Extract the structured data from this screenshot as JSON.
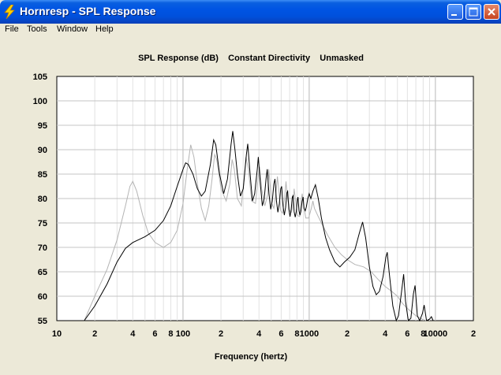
{
  "window": {
    "title": "Hornresp - SPL Response"
  },
  "menu": {
    "items": [
      "File",
      "Tools",
      "Window",
      "Help"
    ]
  },
  "chart_data": {
    "type": "line",
    "title": "SPL Response (dB)    Constant Directivity    Unmasked",
    "xlabel": "Frequency (hertz)",
    "ylabel": "",
    "x_scale": "log",
    "xlim": [
      10,
      20000
    ],
    "ylim": [
      55,
      105
    ],
    "y_ticks": [
      55,
      60,
      65,
      70,
      75,
      80,
      85,
      90,
      95,
      100,
      105
    ],
    "x_ticks": [
      {
        "value": 10,
        "label": "10"
      },
      {
        "value": 20,
        "label": "2"
      },
      {
        "value": 40,
        "label": "4"
      },
      {
        "value": 60,
        "label": "6"
      },
      {
        "value": 80,
        "label": "8"
      },
      {
        "value": 100,
        "label": "100"
      },
      {
        "value": 200,
        "label": "2"
      },
      {
        "value": 400,
        "label": "4"
      },
      {
        "value": 600,
        "label": "6"
      },
      {
        "value": 800,
        "label": "8"
      },
      {
        "value": 1000,
        "label": "1000"
      },
      {
        "value": 2000,
        "label": "2"
      },
      {
        "value": 4000,
        "label": "4"
      },
      {
        "value": 6000,
        "label": "6"
      },
      {
        "value": 8000,
        "label": "8"
      },
      {
        "value": 10000,
        "label": "10000"
      },
      {
        "value": 20000,
        "label": "2"
      }
    ],
    "grid": true,
    "series": [
      {
        "color": "#000000",
        "points": [
          [
            16.5,
            55
          ],
          [
            20,
            58
          ],
          [
            25,
            62.5
          ],
          [
            30,
            67
          ],
          [
            35,
            69.8
          ],
          [
            40,
            71
          ],
          [
            50,
            72.2
          ],
          [
            60,
            73.5
          ],
          [
            70,
            75.5
          ],
          [
            80,
            78.5
          ],
          [
            90,
            82.5
          ],
          [
            100,
            86
          ],
          [
            105,
            87.3
          ],
          [
            110,
            87
          ],
          [
            120,
            85
          ],
          [
            130,
            82
          ],
          [
            140,
            80.5
          ],
          [
            150,
            81.5
          ],
          [
            165,
            87
          ],
          [
            175,
            92
          ],
          [
            182,
            91
          ],
          [
            195,
            85
          ],
          [
            210,
            81
          ],
          [
            225,
            84
          ],
          [
            240,
            91
          ],
          [
            248,
            93.8
          ],
          [
            258,
            90
          ],
          [
            270,
            85
          ],
          [
            285,
            80.5
          ],
          [
            300,
            82
          ],
          [
            318,
            89
          ],
          [
            326,
            91.2
          ],
          [
            340,
            85
          ],
          [
            355,
            79.5
          ],
          [
            370,
            81
          ],
          [
            388,
            86
          ],
          [
            395,
            88.5
          ],
          [
            410,
            83
          ],
          [
            425,
            78.5
          ],
          [
            440,
            80
          ],
          [
            455,
            84
          ],
          [
            465,
            86
          ],
          [
            480,
            81
          ],
          [
            495,
            77.8
          ],
          [
            510,
            79.5
          ],
          [
            525,
            83
          ],
          [
            535,
            84
          ],
          [
            550,
            79.5
          ],
          [
            565,
            77.2
          ],
          [
            580,
            79
          ],
          [
            595,
            82
          ],
          [
            605,
            82.5
          ],
          [
            620,
            78.5
          ],
          [
            635,
            76.6
          ],
          [
            650,
            78.2
          ],
          [
            665,
            81.2
          ],
          [
            675,
            81.5
          ],
          [
            690,
            77.8
          ],
          [
            705,
            76.3
          ],
          [
            720,
            77.8
          ],
          [
            735,
            80.3
          ],
          [
            745,
            80.6
          ],
          [
            760,
            77.3
          ],
          [
            775,
            76.2
          ],
          [
            790,
            77.3
          ],
          [
            805,
            79.7
          ],
          [
            815,
            80.3
          ],
          [
            830,
            77.5
          ],
          [
            845,
            76.6
          ],
          [
            860,
            77.4
          ],
          [
            880,
            79.5
          ],
          [
            895,
            80.3
          ],
          [
            910,
            78
          ],
          [
            930,
            77.5
          ],
          [
            950,
            78.3
          ],
          [
            975,
            80
          ],
          [
            1000,
            81
          ],
          [
            1030,
            80
          ],
          [
            1070,
            81.5
          ],
          [
            1120,
            82.8
          ],
          [
            1180,
            80
          ],
          [
            1250,
            76
          ],
          [
            1350,
            72
          ],
          [
            1450,
            69.5
          ],
          [
            1600,
            67
          ],
          [
            1750,
            66
          ],
          [
            1900,
            67
          ],
          [
            2100,
            68
          ],
          [
            2300,
            69.5
          ],
          [
            2500,
            73
          ],
          [
            2650,
            75.2
          ],
          [
            2800,
            72
          ],
          [
            3000,
            66
          ],
          [
            3200,
            62
          ],
          [
            3400,
            60.3
          ],
          [
            3600,
            61
          ],
          [
            3850,
            64
          ],
          [
            4050,
            68
          ],
          [
            4150,
            69
          ],
          [
            4300,
            65
          ],
          [
            4600,
            58
          ],
          [
            4900,
            55
          ],
          [
            5100,
            56
          ],
          [
            5400,
            61
          ],
          [
            5600,
            64.5
          ],
          [
            5800,
            59
          ],
          [
            6100,
            55
          ],
          [
            6400,
            55.5
          ],
          [
            6700,
            60.5
          ],
          [
            6900,
            62.2
          ],
          [
            7200,
            56
          ],
          [
            7500,
            55
          ],
          [
            7900,
            56.5
          ],
          [
            8150,
            58.2
          ],
          [
            8500,
            55
          ],
          [
            9000,
            55.3
          ],
          [
            9300,
            55.8
          ],
          [
            9600,
            55
          ]
        ]
      },
      {
        "color": "#b4b4b4",
        "points": [
          [
            16.5,
            55
          ],
          [
            20,
            60
          ],
          [
            25,
            65.5
          ],
          [
            30,
            71.5
          ],
          [
            35,
            78.5
          ],
          [
            38,
            82.5
          ],
          [
            40,
            83.5
          ],
          [
            43,
            81.5
          ],
          [
            48,
            76.5
          ],
          [
            53,
            73
          ],
          [
            60,
            71
          ],
          [
            70,
            70
          ],
          [
            80,
            71
          ],
          [
            90,
            73.5
          ],
          [
            100,
            79
          ],
          [
            108,
            86
          ],
          [
            115,
            91
          ],
          [
            122,
            88.5
          ],
          [
            130,
            83
          ],
          [
            140,
            78
          ],
          [
            150,
            75.5
          ],
          [
            160,
            78.5
          ],
          [
            170,
            84
          ],
          [
            178,
            89
          ],
          [
            185,
            88
          ],
          [
            200,
            82
          ],
          [
            220,
            79.5
          ],
          [
            235,
            83
          ],
          [
            245,
            88
          ],
          [
            255,
            86
          ],
          [
            270,
            80
          ],
          [
            290,
            78.5
          ],
          [
            305,
            84
          ],
          [
            315,
            88.5
          ],
          [
            330,
            86
          ],
          [
            350,
            79.5
          ],
          [
            375,
            79
          ],
          [
            395,
            84.5
          ],
          [
            405,
            86.5
          ],
          [
            420,
            82
          ],
          [
            445,
            78.5
          ],
          [
            468,
            80.8
          ],
          [
            478,
            86
          ],
          [
            490,
            83
          ],
          [
            505,
            79
          ],
          [
            525,
            78
          ],
          [
            545,
            81
          ],
          [
            560,
            84.5
          ],
          [
            575,
            81.5
          ],
          [
            595,
            77.5
          ],
          [
            615,
            77
          ],
          [
            638,
            80
          ],
          [
            655,
            83.5
          ],
          [
            670,
            80.5
          ],
          [
            700,
            77.5
          ],
          [
            725,
            77.2
          ],
          [
            745,
            79
          ],
          [
            760,
            82
          ],
          [
            780,
            79.5
          ],
          [
            810,
            76.5
          ],
          [
            840,
            76.3
          ],
          [
            860,
            79.2
          ],
          [
            880,
            81
          ],
          [
            900,
            78.8
          ],
          [
            940,
            76
          ],
          [
            990,
            76
          ],
          [
            1040,
            78
          ],
          [
            1070,
            79.5
          ],
          [
            1100,
            78
          ],
          [
            1170,
            76.5
          ],
          [
            1250,
            75
          ],
          [
            1400,
            72.5
          ],
          [
            1600,
            70
          ],
          [
            1800,
            68.5
          ],
          [
            2000,
            67.5
          ],
          [
            2300,
            66.5
          ],
          [
            2700,
            66
          ],
          [
            3100,
            65
          ],
          [
            3500,
            63.5
          ],
          [
            4000,
            62
          ],
          [
            4500,
            61
          ],
          [
            5000,
            60
          ],
          [
            5500,
            58.5
          ],
          [
            6000,
            57.5
          ],
          [
            7000,
            56
          ],
          [
            8000,
            55.2
          ],
          [
            8500,
            55
          ]
        ]
      }
    ]
  }
}
